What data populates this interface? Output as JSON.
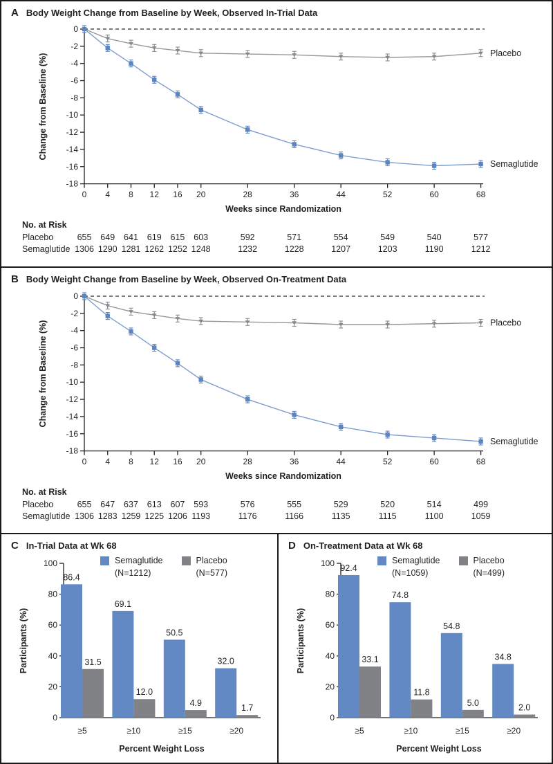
{
  "colors": {
    "semaglutide_bar": "#6289c4",
    "semaglutide_line": "#7d9ecf",
    "semaglutide_marker": "#5b84c0",
    "placebo_bar": "#808285",
    "placebo_line": "#97999c",
    "placebo_marker": "#85878a",
    "axis_text": "#231f20"
  },
  "panel_a": {
    "letter": "A",
    "no_at_risk_label": "No. at Risk",
    "at_risk_rows": [
      {
        "label": "Placebo",
        "values": [
          "655",
          "649",
          "641",
          "619",
          "615",
          "603",
          "592",
          "571",
          "554",
          "549",
          "540",
          "577"
        ]
      },
      {
        "label": "Semaglutide",
        "values": [
          "1306",
          "1290",
          "1281",
          "1262",
          "1252",
          "1248",
          "1232",
          "1228",
          "1207",
          "1203",
          "1190",
          "1212"
        ]
      }
    ]
  },
  "panel_b": {
    "letter": "B",
    "no_at_risk_label": "No. at Risk",
    "at_risk_rows": [
      {
        "label": "Placebo",
        "values": [
          "655",
          "647",
          "637",
          "613",
          "607",
          "593",
          "576",
          "555",
          "529",
          "520",
          "514",
          "499"
        ]
      },
      {
        "label": "Semaglutide",
        "values": [
          "1306",
          "1283",
          "1259",
          "1225",
          "1206",
          "1193",
          "1176",
          "1166",
          "1135",
          "1115",
          "1100",
          "1059"
        ]
      }
    ]
  },
  "panel_c": {
    "letter": "C"
  },
  "panel_d": {
    "letter": "D"
  },
  "chart_data": [
    {
      "id": "panel_a",
      "type": "line",
      "title": "Body Weight Change from Baseline by Week, Observed In-Trial Data",
      "xlabel": "Weeks since Randomization",
      "ylabel": "Change from Baseline (%)",
      "x": [
        0,
        4,
        8,
        12,
        16,
        20,
        28,
        36,
        44,
        52,
        60,
        68
      ],
      "xticks": [
        0,
        4,
        8,
        12,
        16,
        20,
        28,
        36,
        44,
        52,
        60,
        68
      ],
      "ylim": [
        -18,
        0
      ],
      "yticks": [
        0,
        -2,
        -4,
        -6,
        -8,
        -10,
        -12,
        -14,
        -16,
        -18
      ],
      "zero_reference_line": true,
      "error_bars": true,
      "legend_position": "right-of-line-end",
      "series": [
        {
          "name": "Placebo",
          "values": [
            0,
            -1.1,
            -1.7,
            -2.2,
            -2.5,
            -2.8,
            -2.9,
            -3.0,
            -3.2,
            -3.3,
            -3.2,
            -2.8
          ]
        },
        {
          "name": "Semaglutide",
          "values": [
            0,
            -2.2,
            -4.0,
            -5.9,
            -7.6,
            -9.4,
            -11.7,
            -13.4,
            -14.7,
            -15.5,
            -15.9,
            -15.7
          ]
        }
      ]
    },
    {
      "id": "panel_b",
      "type": "line",
      "title": "Body Weight Change from Baseline by Week, Observed On-Treatment Data",
      "xlabel": "Weeks since Randomization",
      "ylabel": "Change from Baseline (%)",
      "x": [
        0,
        4,
        8,
        12,
        16,
        20,
        28,
        36,
        44,
        52,
        60,
        68
      ],
      "xticks": [
        0,
        4,
        8,
        12,
        16,
        20,
        28,
        36,
        44,
        52,
        60,
        68
      ],
      "ylim": [
        -18,
        0
      ],
      "yticks": [
        0,
        -2,
        -4,
        -6,
        -8,
        -10,
        -12,
        -14,
        -16,
        -18
      ],
      "zero_reference_line": true,
      "error_bars": true,
      "legend_position": "right-of-line-end",
      "series": [
        {
          "name": "Placebo",
          "values": [
            0,
            -1.1,
            -1.8,
            -2.2,
            -2.6,
            -2.9,
            -3.0,
            -3.1,
            -3.3,
            -3.3,
            -3.2,
            -3.1
          ]
        },
        {
          "name": "Semaglutide",
          "values": [
            0,
            -2.3,
            -4.1,
            -6.0,
            -7.8,
            -9.7,
            -12.0,
            -13.8,
            -15.2,
            -16.1,
            -16.5,
            -16.9
          ]
        }
      ]
    },
    {
      "id": "panel_c",
      "type": "bar",
      "title": "In-Trial Data at Wk 68",
      "xlabel": "Percent Weight Loss",
      "ylabel": "Participants (%)",
      "categories": [
        "≥5",
        "≥10",
        "≥15",
        "≥20"
      ],
      "ylim": [
        0,
        100
      ],
      "yticks": [
        0,
        20,
        40,
        60,
        80,
        100
      ],
      "legend_position": "top-inside",
      "series": [
        {
          "name": "Semaglutide",
          "n_label": "(N=1212)",
          "values": [
            86.4,
            69.1,
            50.5,
            32.0
          ]
        },
        {
          "name": "Placebo",
          "n_label": "(N=577)",
          "values": [
            31.5,
            12.0,
            4.9,
            1.7
          ]
        }
      ]
    },
    {
      "id": "panel_d",
      "type": "bar",
      "title": "On-Treatment Data at Wk 68",
      "xlabel": "Percent Weight Loss",
      "ylabel": "Participants (%)",
      "categories": [
        "≥5",
        "≥10",
        "≥15",
        "≥20"
      ],
      "ylim": [
        0,
        100
      ],
      "yticks": [
        0,
        20,
        40,
        60,
        80,
        100
      ],
      "legend_position": "top-inside",
      "series": [
        {
          "name": "Semaglutide",
          "n_label": "(N=1059)",
          "values": [
            92.4,
            74.8,
            54.8,
            34.8
          ]
        },
        {
          "name": "Placebo",
          "n_label": "(N=499)",
          "values": [
            33.1,
            11.8,
            5.0,
            2.0
          ]
        }
      ]
    }
  ]
}
